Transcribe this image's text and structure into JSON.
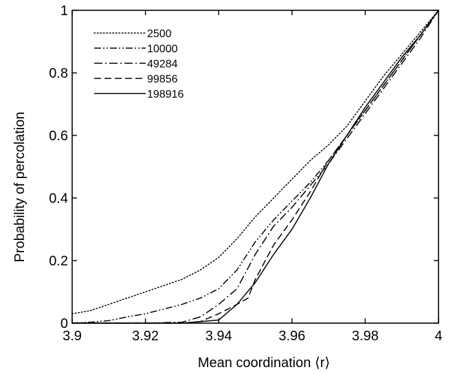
{
  "chart_data": {
    "type": "line",
    "xlabel": "Mean coordination ⟨r⟩",
    "ylabel": "Probability of percolation",
    "xlim": [
      3.9,
      4.0
    ],
    "ylim": [
      0,
      1
    ],
    "x_ticks": [
      3.9,
      3.92,
      3.94,
      3.96,
      3.98,
      4.0
    ],
    "x_tick_labels": [
      "3.9",
      "3.92",
      "3.94",
      "3.96",
      "3.98",
      "4"
    ],
    "y_ticks": [
      0,
      0.2,
      0.4,
      0.6,
      0.8,
      1.0
    ],
    "y_tick_labels": [
      "0",
      "0.2",
      "0.4",
      "0.6",
      "0.8",
      "1"
    ],
    "grid": false,
    "legend_position": "top-left",
    "series": [
      {
        "name": "2500",
        "line_style": "dotted",
        "x": [
          3.9,
          3.905,
          3.91,
          3.915,
          3.92,
          3.925,
          3.93,
          3.935,
          3.94,
          3.945,
          3.95,
          3.955,
          3.96,
          3.965,
          3.97,
          3.975,
          3.98,
          3.985,
          3.99,
          3.995,
          4.0
        ],
        "y": [
          0.03,
          0.04,
          0.06,
          0.08,
          0.1,
          0.12,
          0.14,
          0.17,
          0.21,
          0.27,
          0.34,
          0.4,
          0.46,
          0.52,
          0.57,
          0.63,
          0.71,
          0.79,
          0.86,
          0.93,
          1.0
        ]
      },
      {
        "name": "10000",
        "line_style": "dash-dot-dot",
        "x": [
          3.9,
          3.905,
          3.91,
          3.915,
          3.92,
          3.925,
          3.93,
          3.935,
          3.94,
          3.945,
          3.95,
          3.955,
          3.96,
          3.965,
          3.97,
          3.975,
          3.98,
          3.985,
          3.99,
          3.995,
          4.0
        ],
        "y": [
          0.0,
          0.003,
          0.008,
          0.02,
          0.03,
          0.045,
          0.06,
          0.08,
          0.11,
          0.17,
          0.26,
          0.33,
          0.39,
          0.45,
          0.52,
          0.6,
          0.68,
          0.76,
          0.84,
          0.92,
          1.0
        ]
      },
      {
        "name": "49284",
        "line_style": "dash-dot",
        "x": [
          3.9,
          3.91,
          3.92,
          3.93,
          3.935,
          3.94,
          3.945,
          3.95,
          3.955,
          3.96,
          3.965,
          3.97,
          3.975,
          3.98,
          3.985,
          3.99,
          3.995,
          4.0
        ],
        "y": [
          0.0,
          0.0,
          0.0,
          0.003,
          0.02,
          0.06,
          0.11,
          0.22,
          0.31,
          0.37,
          0.44,
          0.51,
          0.59,
          0.67,
          0.75,
          0.83,
          0.91,
          1.0
        ]
      },
      {
        "name": "99856",
        "line_style": "dashed",
        "x": [
          3.9,
          3.91,
          3.92,
          3.93,
          3.935,
          3.94,
          3.945,
          3.948,
          3.95,
          3.955,
          3.96,
          3.965,
          3.97,
          3.975,
          3.98,
          3.985,
          3.99,
          3.995,
          4.0
        ],
        "y": [
          0.0,
          0.0,
          0.0,
          0.0,
          0.005,
          0.03,
          0.06,
          0.08,
          0.14,
          0.25,
          0.33,
          0.42,
          0.52,
          0.6,
          0.68,
          0.76,
          0.84,
          0.92,
          1.0
        ]
      },
      {
        "name": "198916",
        "line_style": "solid",
        "x": [
          3.9,
          3.91,
          3.92,
          3.93,
          3.94,
          3.945,
          3.95,
          3.955,
          3.96,
          3.965,
          3.97,
          3.975,
          3.98,
          3.985,
          3.99,
          3.995,
          4.0
        ],
        "y": [
          0.0,
          0.0,
          0.0,
          0.0,
          0.01,
          0.06,
          0.13,
          0.22,
          0.3,
          0.4,
          0.51,
          0.6,
          0.69,
          0.77,
          0.85,
          0.92,
          1.0
        ]
      }
    ]
  }
}
